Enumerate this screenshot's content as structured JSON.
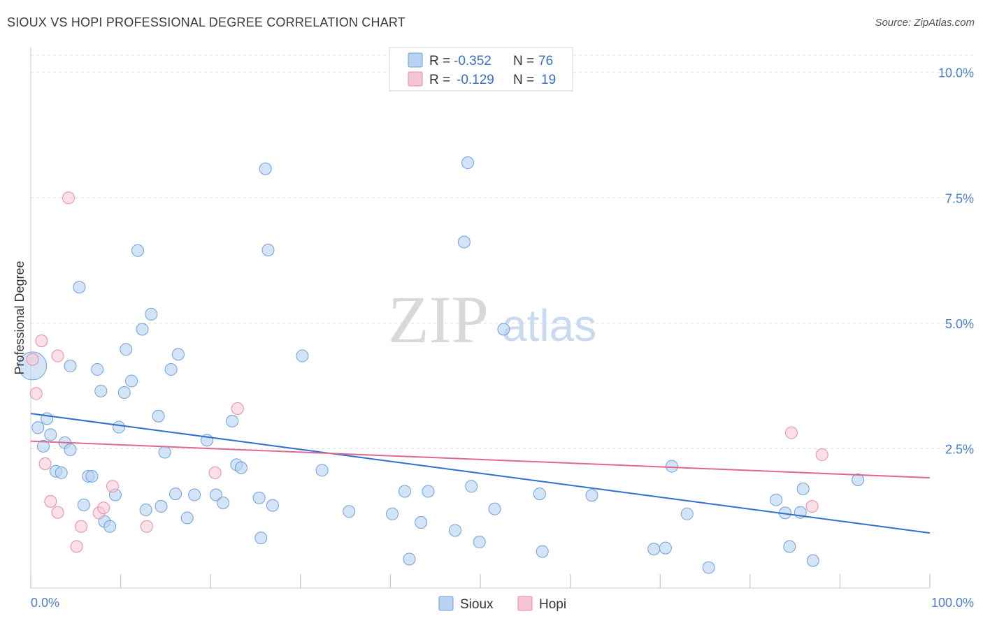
{
  "header": {
    "title": "SIOUX VS HOPI PROFESSIONAL DEGREE CORRELATION CHART",
    "source": "Source: ZipAtlas.com"
  },
  "watermark": {
    "zip": "ZIP",
    "atlas": "atlas"
  },
  "colors": {
    "sioux_fill": "#b8d2f2",
    "sioux_stroke": "#6f9fdc",
    "sioux_line": "#2f6fcf",
    "hopi_fill": "#f7c6d4",
    "hopi_stroke": "#e88aa6",
    "hopi_line": "#e06890",
    "tick_label": "#4a7fc9",
    "grid": "#dcdcdc"
  },
  "legend_top": {
    "rows": [
      {
        "r_label": "R =",
        "r_value": "-0.352",
        "n_label": "N =",
        "n_value": "76"
      },
      {
        "r_label": "R =",
        "r_value": "-0.129",
        "n_label": "N =",
        "n_value": "19"
      }
    ]
  },
  "legend_bottom": {
    "items": [
      "Sioux",
      "Hopi"
    ]
  },
  "chart_data": {
    "type": "scatter",
    "title": "SIOUX VS HOPI PROFESSIONAL DEGREE CORRELATION CHART",
    "xlabel": "",
    "ylabel": "Professional Degree",
    "xlim": [
      0,
      100
    ],
    "ylim": [
      0,
      10.4
    ],
    "x_tick_labels": [
      "0.0%",
      "100.0%"
    ],
    "y_ticks": [
      2.5,
      5.0,
      7.5,
      10.0
    ],
    "y_tick_labels": [
      "2.5%",
      "5.0%",
      "7.5%",
      "10.0%"
    ],
    "grid": true,
    "series": [
      {
        "name": "Sioux",
        "r": -0.352,
        "n": 76,
        "trend": {
          "x": [
            0,
            100
          ],
          "y": [
            3.2,
            0.82
          ]
        },
        "points": [
          [
            0.2,
            4.15
          ],
          [
            0.8,
            2.92
          ],
          [
            1.4,
            2.55
          ],
          [
            1.8,
            3.1
          ],
          [
            2.2,
            2.78
          ],
          [
            2.8,
            2.05
          ],
          [
            3.4,
            2.02
          ],
          [
            3.8,
            2.62
          ],
          [
            4.4,
            2.48
          ],
          [
            4.4,
            4.15
          ],
          [
            5.4,
            5.72
          ],
          [
            5.9,
            1.38
          ],
          [
            6.4,
            1.95
          ],
          [
            6.8,
            1.95
          ],
          [
            7.4,
            4.08
          ],
          [
            7.8,
            3.65
          ],
          [
            8.2,
            1.05
          ],
          [
            8.8,
            0.95
          ],
          [
            9.4,
            1.58
          ],
          [
            9.8,
            2.93
          ],
          [
            10.4,
            3.62
          ],
          [
            10.6,
            4.48
          ],
          [
            11.2,
            3.85
          ],
          [
            11.9,
            6.45
          ],
          [
            12.4,
            4.88
          ],
          [
            12.8,
            1.28
          ],
          [
            13.4,
            5.18
          ],
          [
            14.2,
            3.15
          ],
          [
            14.5,
            1.35
          ],
          [
            14.9,
            2.43
          ],
          [
            15.6,
            4.08
          ],
          [
            16.1,
            1.6
          ],
          [
            16.4,
            4.38
          ],
          [
            17.4,
            1.12
          ],
          [
            18.2,
            1.58
          ],
          [
            19.6,
            2.67
          ],
          [
            20.6,
            1.58
          ],
          [
            21.4,
            1.42
          ],
          [
            22.4,
            3.05
          ],
          [
            22.9,
            2.18
          ],
          [
            23.4,
            2.12
          ],
          [
            25.4,
            1.52
          ],
          [
            25.6,
            0.72
          ],
          [
            26.1,
            8.08
          ],
          [
            26.4,
            6.46
          ],
          [
            26.9,
            1.37
          ],
          [
            30.2,
            4.35
          ],
          [
            32.4,
            2.07
          ],
          [
            35.4,
            1.25
          ],
          [
            40.2,
            1.2
          ],
          [
            41.6,
            1.65
          ],
          [
            42.1,
            0.3
          ],
          [
            43.4,
            1.03
          ],
          [
            44.2,
            1.65
          ],
          [
            47.2,
            0.87
          ],
          [
            48.2,
            6.62
          ],
          [
            49.0,
            1.75
          ],
          [
            48.6,
            8.2
          ],
          [
            49.9,
            0.64
          ],
          [
            51.6,
            1.3
          ],
          [
            52.6,
            4.88
          ],
          [
            56.6,
            1.6
          ],
          [
            56.9,
            0.45
          ],
          [
            62.4,
            1.57
          ],
          [
            69.3,
            0.5
          ],
          [
            70.6,
            0.52
          ],
          [
            71.3,
            2.15
          ],
          [
            73.0,
            1.2
          ],
          [
            75.4,
            0.13
          ],
          [
            82.9,
            1.48
          ],
          [
            83.9,
            1.22
          ],
          [
            84.4,
            0.55
          ],
          [
            85.6,
            1.23
          ],
          [
            85.9,
            1.7
          ],
          [
            87.0,
            0.27
          ],
          [
            92.0,
            1.88
          ]
        ]
      },
      {
        "name": "Hopi",
        "r": -0.129,
        "n": 19,
        "trend": {
          "x": [
            0,
            100
          ],
          "y": [
            2.65,
            1.92
          ]
        },
        "points": [
          [
            0.2,
            4.28
          ],
          [
            0.6,
            3.6
          ],
          [
            1.2,
            4.65
          ],
          [
            1.6,
            2.2
          ],
          [
            2.2,
            1.45
          ],
          [
            3.0,
            4.35
          ],
          [
            3.0,
            1.23
          ],
          [
            4.2,
            7.5
          ],
          [
            5.1,
            0.55
          ],
          [
            5.6,
            0.95
          ],
          [
            7.6,
            1.22
          ],
          [
            8.1,
            1.32
          ],
          [
            9.1,
            1.75
          ],
          [
            12.9,
            0.95
          ],
          [
            20.5,
            2.02
          ],
          [
            23.0,
            3.3
          ],
          [
            84.6,
            2.82
          ],
          [
            88.0,
            2.38
          ],
          [
            86.9,
            1.35
          ]
        ]
      }
    ]
  }
}
